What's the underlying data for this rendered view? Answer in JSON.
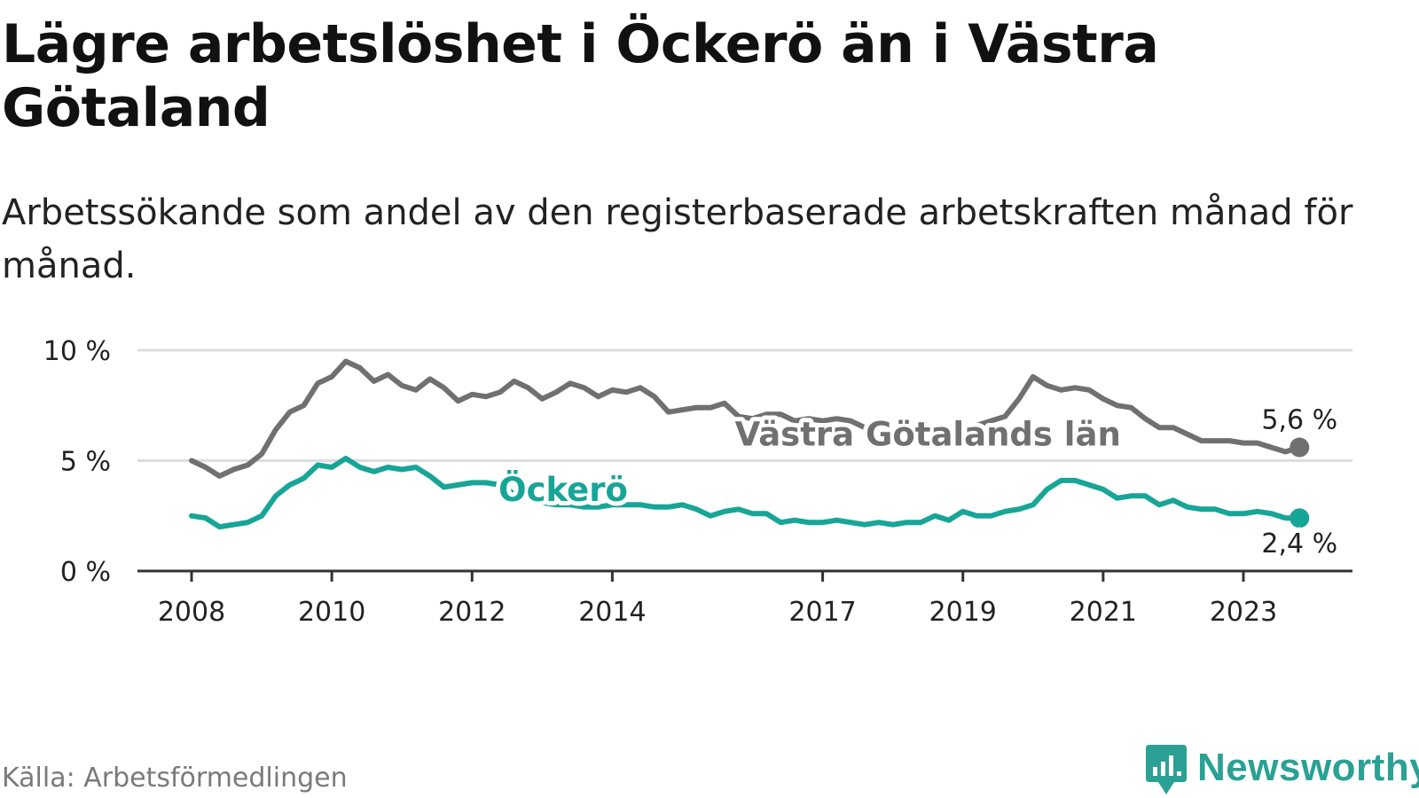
{
  "header": {
    "title": "Lägre arbetslöshet i Öckerö än i Västra Götaland",
    "subtitle": "Arbetssökande som andel av den registerbaserade arbetskraften månad för månad."
  },
  "footer": {
    "source": "Källa: Arbetsförmedlingen",
    "brand": "Newsworthy"
  },
  "colors": {
    "vastra": "#707070",
    "ockero": "#17a597",
    "grid": "#dddddd",
    "axis": "#333333",
    "brand": "#2aa194"
  },
  "chart_data": {
    "type": "line",
    "title": "Lägre arbetslöshet i Öckerö än i Västra Götaland",
    "subtitle": "Arbetssökande som andel av den registerbaserade arbetskraften månad för månad.",
    "xlabel": "",
    "ylabel": "",
    "xlim": [
      2008.0,
      2025.3
    ],
    "ylim": [
      0,
      10
    ],
    "grid": true,
    "y_ticks": [
      {
        "value": 0,
        "label": "0 %"
      },
      {
        "value": 5,
        "label": "5 %"
      },
      {
        "value": 10,
        "label": "10 %"
      }
    ],
    "x_ticks": [
      {
        "value": 2008,
        "label": "2008"
      },
      {
        "value": 2010,
        "label": "2010"
      },
      {
        "value": 2012,
        "label": "2012"
      },
      {
        "value": 2014,
        "label": "2014"
      },
      {
        "value": 2017,
        "label": "2017"
      },
      {
        "value": 2019,
        "label": "2019"
      },
      {
        "value": 2021,
        "label": "2021"
      },
      {
        "value": 2023,
        "label": "2023"
      }
    ],
    "series": [
      {
        "name": "Västra Götalands län",
        "key": "vastra",
        "end_label": "5,6 %",
        "x": [
          2008.0,
          2008.2,
          2008.4,
          2008.6,
          2008.8,
          2009.0,
          2009.2,
          2009.4,
          2009.6,
          2009.8,
          2010.0,
          2010.2,
          2010.4,
          2010.6,
          2010.8,
          2011.0,
          2011.2,
          2011.4,
          2011.6,
          2011.8,
          2012.0,
          2012.2,
          2012.4,
          2012.6,
          2012.8,
          2013.0,
          2013.2,
          2013.4,
          2013.6,
          2013.8,
          2014.0,
          2014.2,
          2014.4,
          2014.6,
          2014.8,
          2015.0,
          2015.2,
          2015.4,
          2015.6,
          2015.8,
          2016.0,
          2016.2,
          2016.4,
          2016.6,
          2016.8,
          2017.0,
          2017.2,
          2017.4,
          2017.6,
          2017.8,
          2018.0,
          2018.2,
          2018.4,
          2018.6,
          2018.8,
          2019.0,
          2019.2,
          2019.4,
          2019.6,
          2019.8,
          2020.0,
          2020.2,
          2020.4,
          2020.6,
          2020.8,
          2021.0,
          2021.2,
          2021.4,
          2021.6,
          2021.8,
          2022.0,
          2022.2,
          2022.4,
          2022.6,
          2022.8,
          2023.0,
          2023.2,
          2023.4,
          2023.6,
          2023.8
        ],
        "values": [
          5.0,
          4.7,
          4.3,
          4.6,
          4.8,
          5.3,
          6.4,
          7.2,
          7.5,
          8.5,
          8.8,
          9.5,
          9.2,
          8.6,
          8.9,
          8.4,
          8.2,
          8.7,
          8.3,
          7.7,
          8.0,
          7.9,
          8.1,
          8.6,
          8.3,
          7.8,
          8.1,
          8.5,
          8.3,
          7.9,
          8.2,
          8.1,
          8.3,
          7.9,
          7.2,
          7.3,
          7.4,
          7.4,
          7.6,
          7.0,
          6.9,
          7.1,
          7.1,
          6.8,
          6.9,
          6.8,
          6.9,
          6.8,
          6.5,
          6.4,
          6.3,
          6.5,
          6.4,
          6.3,
          6.5,
          6.4,
          6.6,
          6.8,
          7.0,
          7.8,
          8.8,
          8.4,
          8.2,
          8.3,
          8.2,
          7.8,
          7.5,
          7.4,
          6.9,
          6.5,
          6.5,
          6.2,
          5.9,
          5.9,
          5.9,
          5.8,
          5.8,
          5.6,
          5.4,
          5.6
        ]
      },
      {
        "name": "Öckerö",
        "key": "ockero",
        "end_label": "2,4 %",
        "x": [
          2008.0,
          2008.2,
          2008.4,
          2008.6,
          2008.8,
          2009.0,
          2009.2,
          2009.4,
          2009.6,
          2009.8,
          2010.0,
          2010.2,
          2010.4,
          2010.6,
          2010.8,
          2011.0,
          2011.2,
          2011.4,
          2011.6,
          2011.8,
          2012.0,
          2012.2,
          2012.4,
          2012.6,
          2012.8,
          2013.0,
          2013.2,
          2013.4,
          2013.6,
          2013.8,
          2014.0,
          2014.2,
          2014.4,
          2014.6,
          2014.8,
          2015.0,
          2015.2,
          2015.4,
          2015.6,
          2015.8,
          2016.0,
          2016.2,
          2016.4,
          2016.6,
          2016.8,
          2017.0,
          2017.2,
          2017.4,
          2017.6,
          2017.8,
          2018.0,
          2018.2,
          2018.4,
          2018.6,
          2018.8,
          2019.0,
          2019.2,
          2019.4,
          2019.6,
          2019.8,
          2020.0,
          2020.2,
          2020.4,
          2020.6,
          2020.8,
          2021.0,
          2021.2,
          2021.4,
          2021.6,
          2021.8,
          2022.0,
          2022.2,
          2022.4,
          2022.6,
          2022.8,
          2023.0,
          2023.2,
          2023.4,
          2023.6,
          2023.8
        ],
        "values": [
          2.5,
          2.4,
          2.0,
          2.1,
          2.2,
          2.5,
          3.4,
          3.9,
          4.2,
          4.8,
          4.7,
          5.1,
          4.7,
          4.5,
          4.7,
          4.6,
          4.7,
          4.3,
          3.8,
          3.9,
          4.0,
          4.0,
          3.9,
          3.5,
          3.3,
          3.1,
          3.0,
          3.0,
          2.9,
          2.9,
          3.0,
          3.0,
          3.0,
          2.9,
          2.9,
          3.0,
          2.8,
          2.5,
          2.7,
          2.8,
          2.6,
          2.6,
          2.2,
          2.3,
          2.2,
          2.2,
          2.3,
          2.2,
          2.1,
          2.2,
          2.1,
          2.2,
          2.2,
          2.5,
          2.3,
          2.7,
          2.5,
          2.5,
          2.7,
          2.8,
          3.0,
          3.7,
          4.1,
          4.1,
          3.9,
          3.7,
          3.3,
          3.4,
          3.4,
          3.0,
          3.2,
          2.9,
          2.8,
          2.8,
          2.6,
          2.6,
          2.7,
          2.6,
          2.4,
          2.4
        ]
      }
    ]
  }
}
